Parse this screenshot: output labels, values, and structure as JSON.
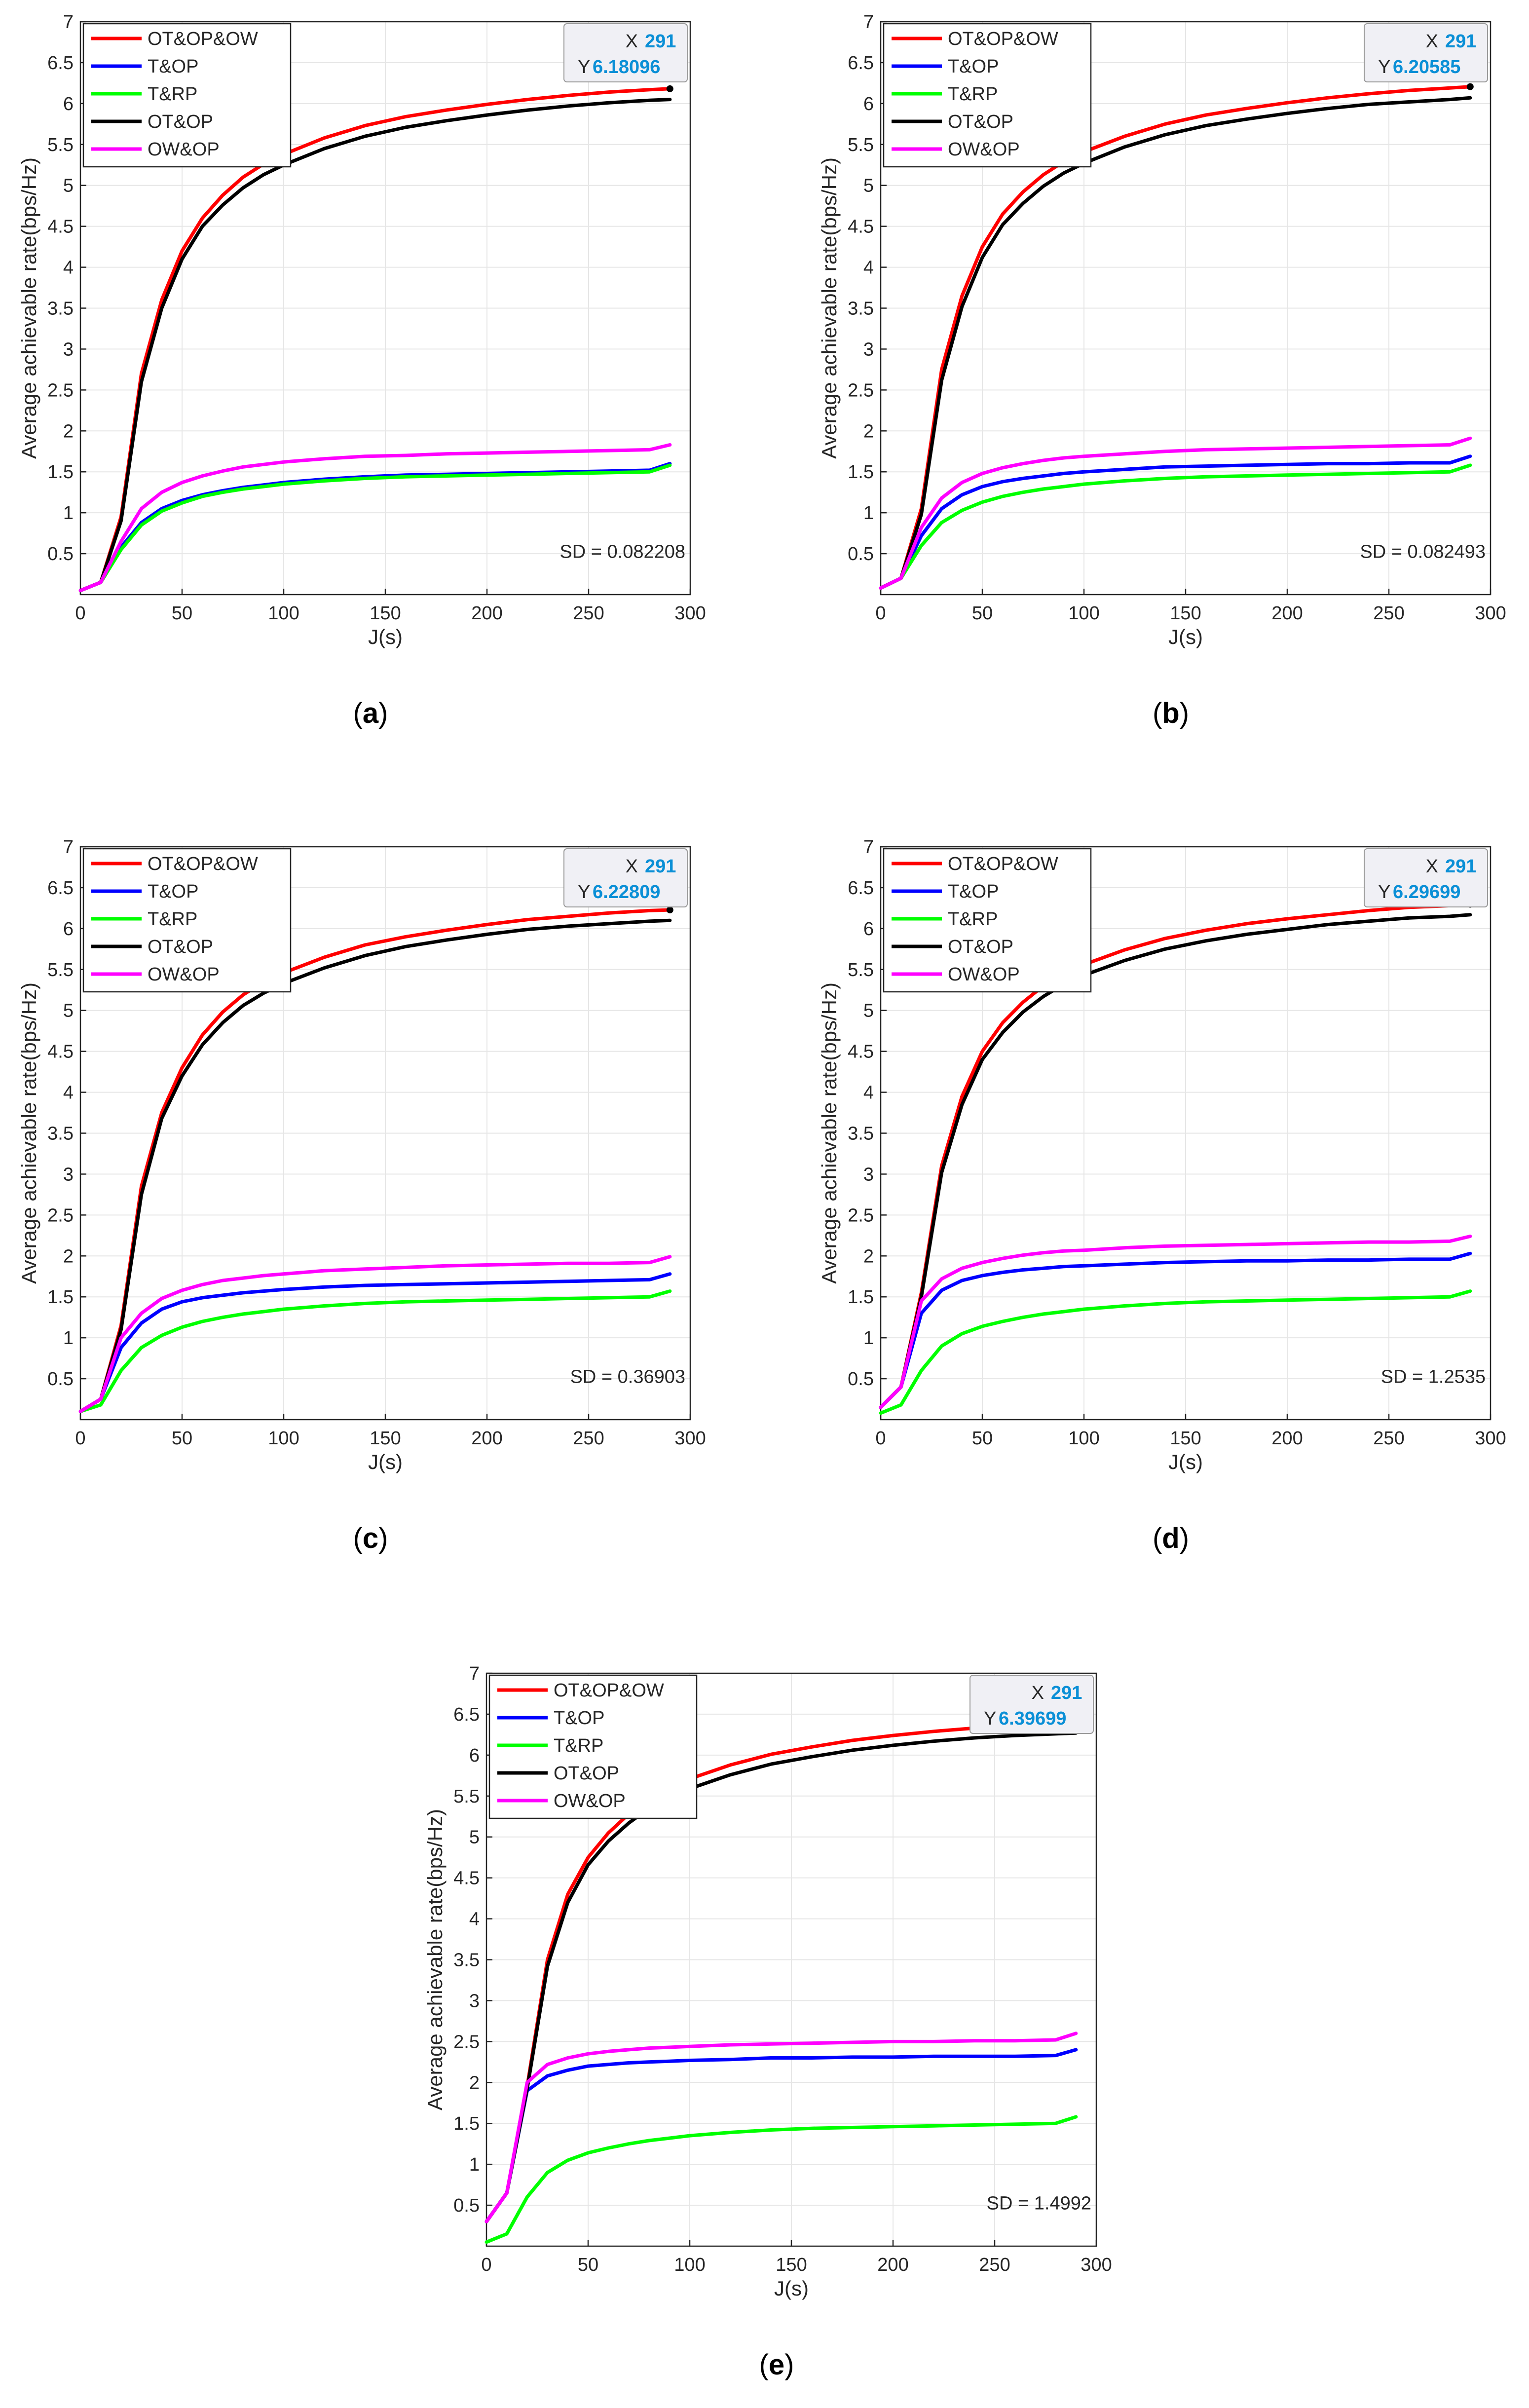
{
  "axis_labels": {
    "xlabel": "J(s)",
    "ylabel": "Average achievable rate(bps/Hz)"
  },
  "x_ticks": [
    "0",
    "50",
    "100",
    "150",
    "200",
    "250",
    "300"
  ],
  "y_ticks": [
    "0.5",
    "1",
    "1.5",
    "2",
    "2.5",
    "3",
    "3.5",
    "4",
    "4.5",
    "5",
    "5.5",
    "6",
    "6.5",
    "7"
  ],
  "legend": [
    "OT&OP&OW",
    "T&OP",
    "T&RP",
    "OT&OP",
    "OW&OP"
  ],
  "colors": {
    "OT&OP&OW": "#ff0000",
    "T&OP": "#0000ff",
    "T&RP": "#00ff00",
    "OT&OP": "#000000",
    "OW&OP": "#ff00ff",
    "tip_value": "#0a8fd6"
  },
  "panels": [
    {
      "caption_letter": "a",
      "datatip": {
        "x_label": "X",
        "x_value": "291",
        "y_label": "Y",
        "y_value": "6.18096"
      },
      "sd_text": "SD = 0.082208"
    },
    {
      "caption_letter": "b",
      "datatip": {
        "x_label": "X",
        "x_value": "291",
        "y_label": "Y",
        "y_value": "6.20585"
      },
      "sd_text": "SD = 0.082493"
    },
    {
      "caption_letter": "c",
      "datatip": {
        "x_label": "X",
        "x_value": "291",
        "y_label": "Y",
        "y_value": "6.22809"
      },
      "sd_text": "SD = 0.36903"
    },
    {
      "caption_letter": "d",
      "datatip": {
        "x_label": "X",
        "x_value": "291",
        "y_label": "Y",
        "y_value": "6.29699"
      },
      "sd_text": "SD = 1.2535"
    },
    {
      "caption_letter": "e",
      "datatip": {
        "x_label": "X",
        "x_value": "291",
        "y_label": "Y",
        "y_value": "6.39699"
      },
      "sd_text": "SD = 1.4992"
    }
  ],
  "chart_data": [
    {
      "type": "line",
      "panel": "a",
      "xlabel": "J(s)",
      "ylabel": "Average achievable rate(bps/Hz)",
      "xlim": [
        0,
        300
      ],
      "ylim": [
        0,
        7
      ],
      "grid": true,
      "legend_position": "top-left",
      "x": [
        0,
        10,
        20,
        30,
        40,
        50,
        60,
        70,
        80,
        90,
        100,
        120,
        140,
        160,
        180,
        200,
        220,
        240,
        260,
        280,
        290
      ],
      "series": [
        {
          "name": "OT&OP&OW",
          "values": [
            0.05,
            0.15,
            0.95,
            2.7,
            3.6,
            4.2,
            4.6,
            4.88,
            5.1,
            5.26,
            5.38,
            5.58,
            5.73,
            5.84,
            5.92,
            5.99,
            6.05,
            6.1,
            6.14,
            6.17,
            6.18096
          ]
        },
        {
          "name": "T&OP",
          "values": [
            0.05,
            0.15,
            0.58,
            0.88,
            1.05,
            1.15,
            1.22,
            1.27,
            1.31,
            1.34,
            1.37,
            1.41,
            1.44,
            1.46,
            1.47,
            1.48,
            1.49,
            1.5,
            1.51,
            1.52,
            1.6
          ]
        },
        {
          "name": "T&RP",
          "values": [
            0.05,
            0.15,
            0.55,
            0.85,
            1.02,
            1.12,
            1.2,
            1.25,
            1.29,
            1.32,
            1.35,
            1.39,
            1.42,
            1.44,
            1.45,
            1.46,
            1.47,
            1.48,
            1.49,
            1.5,
            1.58
          ]
        },
        {
          "name": "OT&OP",
          "values": [
            0.05,
            0.15,
            0.9,
            2.6,
            3.5,
            4.1,
            4.5,
            4.76,
            4.97,
            5.13,
            5.25,
            5.45,
            5.6,
            5.71,
            5.79,
            5.86,
            5.92,
            5.97,
            6.01,
            6.04,
            6.05
          ]
        },
        {
          "name": "OW&OP",
          "values": [
            0.05,
            0.15,
            0.65,
            1.05,
            1.25,
            1.37,
            1.45,
            1.51,
            1.56,
            1.59,
            1.62,
            1.66,
            1.69,
            1.7,
            1.72,
            1.73,
            1.74,
            1.75,
            1.76,
            1.77,
            1.83
          ]
        }
      ]
    },
    {
      "type": "line",
      "panel": "b",
      "xlabel": "J(s)",
      "ylabel": "Average achievable rate(bps/Hz)",
      "xlim": [
        0,
        300
      ],
      "ylim": [
        0,
        7
      ],
      "grid": true,
      "legend_position": "top-left",
      "x": [
        0,
        10,
        20,
        30,
        40,
        50,
        60,
        70,
        80,
        90,
        100,
        120,
        140,
        160,
        180,
        200,
        220,
        240,
        260,
        280,
        290
      ],
      "series": [
        {
          "name": "OT&OP&OW",
          "values": [
            0.08,
            0.2,
            1.05,
            2.75,
            3.65,
            4.25,
            4.65,
            4.92,
            5.13,
            5.29,
            5.41,
            5.6,
            5.75,
            5.86,
            5.94,
            6.01,
            6.07,
            6.12,
            6.16,
            6.19,
            6.20585
          ]
        },
        {
          "name": "T&OP",
          "values": [
            0.08,
            0.2,
            0.72,
            1.05,
            1.22,
            1.32,
            1.38,
            1.42,
            1.45,
            1.48,
            1.5,
            1.53,
            1.56,
            1.57,
            1.58,
            1.59,
            1.6,
            1.6,
            1.61,
            1.61,
            1.69
          ]
        },
        {
          "name": "T&RP",
          "values": [
            0.08,
            0.2,
            0.6,
            0.88,
            1.03,
            1.13,
            1.2,
            1.25,
            1.29,
            1.32,
            1.35,
            1.39,
            1.42,
            1.44,
            1.45,
            1.46,
            1.47,
            1.48,
            1.49,
            1.5,
            1.58
          ]
        },
        {
          "name": "OT&OP",
          "values": [
            0.08,
            0.2,
            0.98,
            2.62,
            3.52,
            4.12,
            4.52,
            4.78,
            4.99,
            5.15,
            5.27,
            5.47,
            5.62,
            5.73,
            5.81,
            5.88,
            5.94,
            5.99,
            6.02,
            6.05,
            6.07
          ]
        },
        {
          "name": "OW&OP",
          "values": [
            0.08,
            0.2,
            0.82,
            1.18,
            1.37,
            1.48,
            1.55,
            1.6,
            1.64,
            1.67,
            1.69,
            1.72,
            1.75,
            1.77,
            1.78,
            1.79,
            1.8,
            1.81,
            1.82,
            1.83,
            1.91
          ]
        }
      ]
    },
    {
      "type": "line",
      "panel": "c",
      "xlabel": "J(s)",
      "ylabel": "Average achievable rate(bps/Hz)",
      "xlim": [
        0,
        300
      ],
      "ylim": [
        0,
        7
      ],
      "grid": true,
      "legend_position": "top-left",
      "x": [
        0,
        10,
        20,
        30,
        40,
        50,
        60,
        70,
        80,
        90,
        100,
        120,
        140,
        160,
        180,
        200,
        220,
        240,
        260,
        280,
        290
      ],
      "series": [
        {
          "name": "OT&OP&OW",
          "values": [
            0.1,
            0.25,
            1.15,
            2.85,
            3.75,
            4.3,
            4.7,
            4.98,
            5.19,
            5.35,
            5.46,
            5.65,
            5.8,
            5.9,
            5.98,
            6.05,
            6.11,
            6.15,
            6.19,
            6.22,
            6.22809
          ]
        },
        {
          "name": "T&OP",
          "values": [
            0.1,
            0.25,
            0.88,
            1.18,
            1.35,
            1.44,
            1.49,
            1.52,
            1.55,
            1.57,
            1.59,
            1.62,
            1.64,
            1.65,
            1.66,
            1.67,
            1.68,
            1.69,
            1.7,
            1.71,
            1.78
          ]
        },
        {
          "name": "T&RP",
          "values": [
            0.1,
            0.18,
            0.6,
            0.88,
            1.03,
            1.13,
            1.2,
            1.25,
            1.29,
            1.32,
            1.35,
            1.39,
            1.42,
            1.44,
            1.45,
            1.46,
            1.47,
            1.48,
            1.49,
            1.5,
            1.57
          ]
        },
        {
          "name": "OT&OP",
          "values": [
            0.1,
            0.25,
            1.1,
            2.75,
            3.68,
            4.2,
            4.58,
            4.85,
            5.06,
            5.21,
            5.33,
            5.52,
            5.67,
            5.78,
            5.86,
            5.93,
            5.99,
            6.03,
            6.06,
            6.09,
            6.1
          ]
        },
        {
          "name": "OW&OP",
          "values": [
            0.1,
            0.25,
            1.0,
            1.3,
            1.48,
            1.58,
            1.65,
            1.7,
            1.73,
            1.76,
            1.78,
            1.82,
            1.84,
            1.86,
            1.88,
            1.89,
            1.9,
            1.91,
            1.91,
            1.92,
            1.99
          ]
        }
      ]
    },
    {
      "type": "line",
      "panel": "d",
      "xlabel": "J(s)",
      "ylabel": "Average achievable rate(bps/Hz)",
      "xlim": [
        0,
        300
      ],
      "ylim": [
        0,
        7
      ],
      "grid": true,
      "legend_position": "top-left",
      "x": [
        0,
        10,
        20,
        30,
        40,
        50,
        60,
        70,
        80,
        90,
        100,
        120,
        140,
        160,
        180,
        200,
        220,
        240,
        260,
        280,
        290
      ],
      "series": [
        {
          "name": "OT&OP&OW",
          "values": [
            0.15,
            0.4,
            1.55,
            3.1,
            3.95,
            4.5,
            4.85,
            5.1,
            5.3,
            5.45,
            5.56,
            5.74,
            5.88,
            5.98,
            6.06,
            6.12,
            6.17,
            6.22,
            6.26,
            6.28,
            6.29699
          ]
        },
        {
          "name": "T&OP",
          "values": [
            0.15,
            0.4,
            1.3,
            1.58,
            1.7,
            1.76,
            1.8,
            1.83,
            1.85,
            1.87,
            1.88,
            1.9,
            1.92,
            1.93,
            1.94,
            1.94,
            1.95,
            1.95,
            1.96,
            1.96,
            2.03
          ]
        },
        {
          "name": "T&RP",
          "values": [
            0.08,
            0.18,
            0.6,
            0.9,
            1.05,
            1.14,
            1.2,
            1.25,
            1.29,
            1.32,
            1.35,
            1.39,
            1.42,
            1.44,
            1.45,
            1.46,
            1.47,
            1.48,
            1.49,
            1.5,
            1.57
          ]
        },
        {
          "name": "OT&OP",
          "values": [
            0.15,
            0.4,
            1.5,
            3.02,
            3.85,
            4.4,
            4.73,
            4.98,
            5.17,
            5.32,
            5.43,
            5.61,
            5.75,
            5.85,
            5.93,
            5.99,
            6.05,
            6.09,
            6.13,
            6.15,
            6.17
          ]
        },
        {
          "name": "OW&OP",
          "values": [
            0.15,
            0.4,
            1.45,
            1.72,
            1.85,
            1.92,
            1.97,
            2.01,
            2.04,
            2.06,
            2.07,
            2.1,
            2.12,
            2.13,
            2.14,
            2.15,
            2.16,
            2.17,
            2.17,
            2.18,
            2.24
          ]
        }
      ]
    },
    {
      "type": "line",
      "panel": "e",
      "xlabel": "J(s)",
      "ylabel": "Average achievable rate(bps/Hz)",
      "xlim": [
        0,
        300
      ],
      "ylim": [
        0,
        7
      ],
      "grid": true,
      "legend_position": "top-left",
      "x": [
        0,
        10,
        20,
        30,
        40,
        50,
        60,
        70,
        80,
        90,
        100,
        120,
        140,
        160,
        180,
        200,
        220,
        240,
        260,
        280,
        290
      ],
      "series": [
        {
          "name": "OT&OP&OW",
          "values": [
            0.3,
            0.65,
            1.95,
            3.5,
            4.3,
            4.75,
            5.05,
            5.28,
            5.46,
            5.6,
            5.71,
            5.88,
            6.01,
            6.1,
            6.18,
            6.24,
            6.29,
            6.33,
            6.36,
            6.38,
            6.39699
          ]
        },
        {
          "name": "T&OP",
          "values": [
            0.3,
            0.65,
            1.9,
            2.08,
            2.15,
            2.2,
            2.22,
            2.24,
            2.25,
            2.26,
            2.27,
            2.28,
            2.3,
            2.3,
            2.31,
            2.31,
            2.32,
            2.32,
            2.32,
            2.33,
            2.4
          ]
        },
        {
          "name": "T&RP",
          "values": [
            0.05,
            0.15,
            0.6,
            0.9,
            1.05,
            1.14,
            1.2,
            1.25,
            1.29,
            1.32,
            1.35,
            1.39,
            1.42,
            1.44,
            1.45,
            1.46,
            1.47,
            1.48,
            1.49,
            1.5,
            1.58
          ]
        },
        {
          "name": "OT&OP",
          "values": [
            0.3,
            0.65,
            1.92,
            3.42,
            4.2,
            4.66,
            4.95,
            5.17,
            5.35,
            5.48,
            5.59,
            5.76,
            5.89,
            5.98,
            6.06,
            6.12,
            6.17,
            6.21,
            6.24,
            6.26,
            6.27
          ]
        },
        {
          "name": "OW&OP",
          "values": [
            0.3,
            0.65,
            2.0,
            2.22,
            2.3,
            2.35,
            2.38,
            2.4,
            2.42,
            2.43,
            2.44,
            2.46,
            2.47,
            2.48,
            2.49,
            2.5,
            2.5,
            2.51,
            2.51,
            2.52,
            2.6
          ]
        }
      ]
    }
  ]
}
